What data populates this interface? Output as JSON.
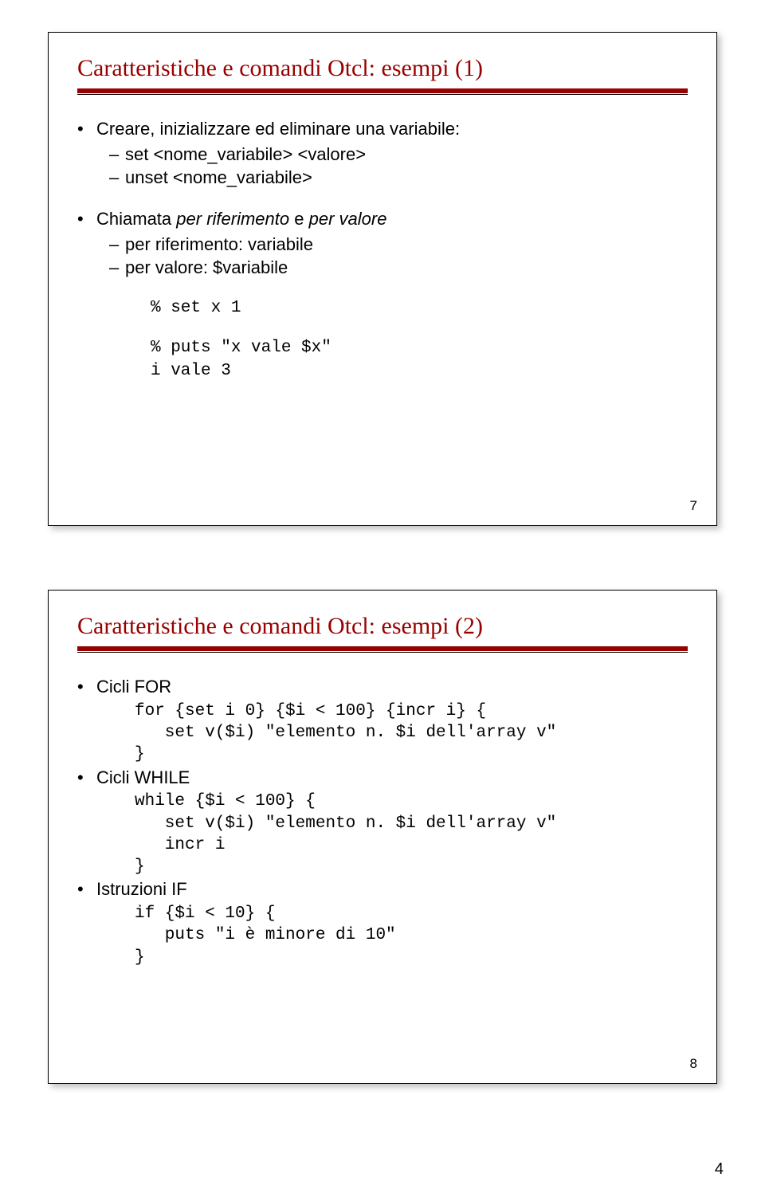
{
  "page": {
    "number": "4"
  },
  "slide1": {
    "title": "Caratteristiche e comandi Otcl: esempi (1)",
    "num": "7",
    "p1": "Creare, inizializzare ed eliminare una variabile:",
    "p1a": "set <nome_variabile> <valore>",
    "p1b": "unset <nome_variabile>",
    "p2_pre": "Chiamata ",
    "p2_em": "per riferimento",
    "p2_mid": " e ",
    "p2_em2": "per valore",
    "p2a": "per riferimento: variabile",
    "p2b": "per valore: $variabile",
    "c1": "% set x 1",
    "c2": "% puts \"x vale $x\"",
    "c3": "i vale 3"
  },
  "slide2": {
    "title": "Caratteristiche e comandi Otcl: esempi (2)",
    "num": "8",
    "p1": "Cicli FOR",
    "c1": "for {set i 0} {$i < 100} {incr i} {\n   set v($i) \"elemento n. $i dell'array v\"\n}",
    "p2": "Cicli WHILE",
    "c2": "while {$i < 100} {\n   set v($i) \"elemento n. $i dell'array v\"\n   incr i\n}",
    "p3": "Istruzioni IF",
    "c3": "if {$i < 10} {\n   puts \"i è minore di 10\"\n}"
  }
}
